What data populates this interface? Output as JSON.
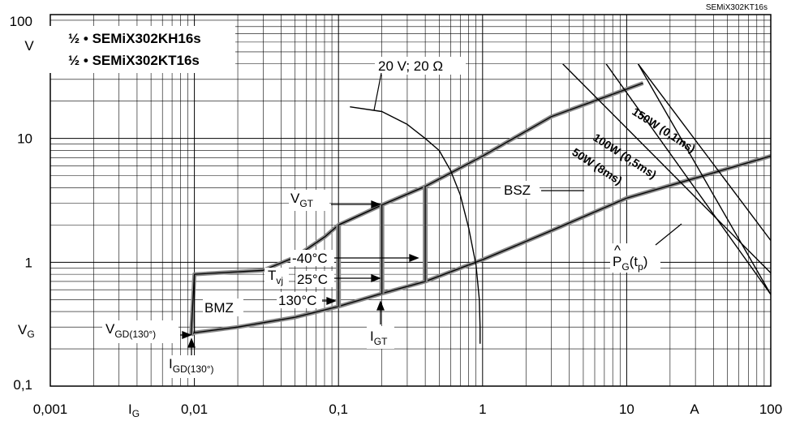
{
  "corner_label": "SEMiX302KT16s",
  "chart_data": {
    "type": "line",
    "title": "",
    "x_scale": "log",
    "y_scale": "log",
    "xlim": [
      0.001,
      100
    ],
    "ylim": [
      0.1,
      100
    ],
    "grid": true,
    "x_ticks": [
      "0,001",
      "0,01",
      "0,1",
      "1",
      "10",
      "100"
    ],
    "y_ticks": [
      "0,1",
      "1",
      "10",
      "100"
    ],
    "x_unit": "A",
    "y_unit": "V",
    "x_axis_symbol": {
      "main": "I",
      "sub": "G"
    },
    "y_axis_symbol": {
      "main": "V",
      "sub": "G"
    },
    "legend": [
      "½ • SEMiX302KH16s",
      "½ • SEMiX302KT16s"
    ],
    "annotations": {
      "load_line": "20 V; 20 Ω",
      "bsz": "BSZ",
      "bmz": "BMZ",
      "tvj_main": "T",
      "tvj_sub": "vj",
      "temp_minus40": "-40°C",
      "temp_25": "25°C",
      "temp_130": "130°C",
      "vgt_main": "V",
      "vgt_sub": "GT",
      "igt_main": "I",
      "igt_sub": "GT",
      "vgd_main": "V",
      "vgd_sub": "GD(130°)",
      "igd_main": "I",
      "igd_sub": "GD(130°)",
      "pg_main": "P",
      "pg_hat": "^",
      "pg_sub": "G",
      "pg_suffix": "(t",
      "pg_sub2": "p",
      "pg_close": ")",
      "p150": "150W (0,1ms)",
      "p100": "100W (0,5ms)",
      "p50": "50W (8ms)"
    },
    "series": [
      {
        "x": [
          0.0095,
          0.01,
          0.02,
          0.05,
          0.1,
          0.2,
          0.4,
          1,
          3,
          10,
          100
        ],
        "y": [
          0.26,
          0.27,
          0.3,
          0.36,
          0.44,
          0.56,
          0.7,
          1.05,
          1.8,
          3.3,
          7.2
        ]
      },
      {
        "x": [
          0.0095,
          0.01,
          0.03,
          0.05,
          0.08,
          0.1,
          0.2,
          0.4,
          1,
          3,
          10,
          13
        ],
        "y": [
          0.26,
          0.8,
          0.86,
          1.1,
          1.6,
          2.0,
          2.9,
          4.1,
          7.2,
          15,
          25,
          28
        ]
      },
      {
        "x": [
          0.12,
          0.2,
          0.3,
          0.4,
          0.5,
          0.6,
          0.7,
          0.8,
          0.9,
          0.95,
          0.96,
          0.96
        ],
        "y": [
          18,
          16.5,
          13,
          10,
          8,
          5.5,
          3.5,
          1.9,
          0.95,
          0.5,
          0.3,
          0.22
        ]
      },
      {
        "x": [
          0.1,
          0.2,
          0.4
        ],
        "y": [
          2.0,
          2.9,
          4.1
        ]
      },
      {
        "x": [
          3.6,
          100
        ],
        "y": [
          40,
          0.82
        ]
      },
      {
        "x": [
          7.2,
          100
        ],
        "y": [
          40,
          0.55
        ]
      },
      {
        "x": [
          12,
          100
        ],
        "y": [
          40,
          0.55
        ]
      },
      {
        "x": [
          12,
          100
        ],
        "y": [
          40,
          1.5
        ]
      }
    ]
  }
}
